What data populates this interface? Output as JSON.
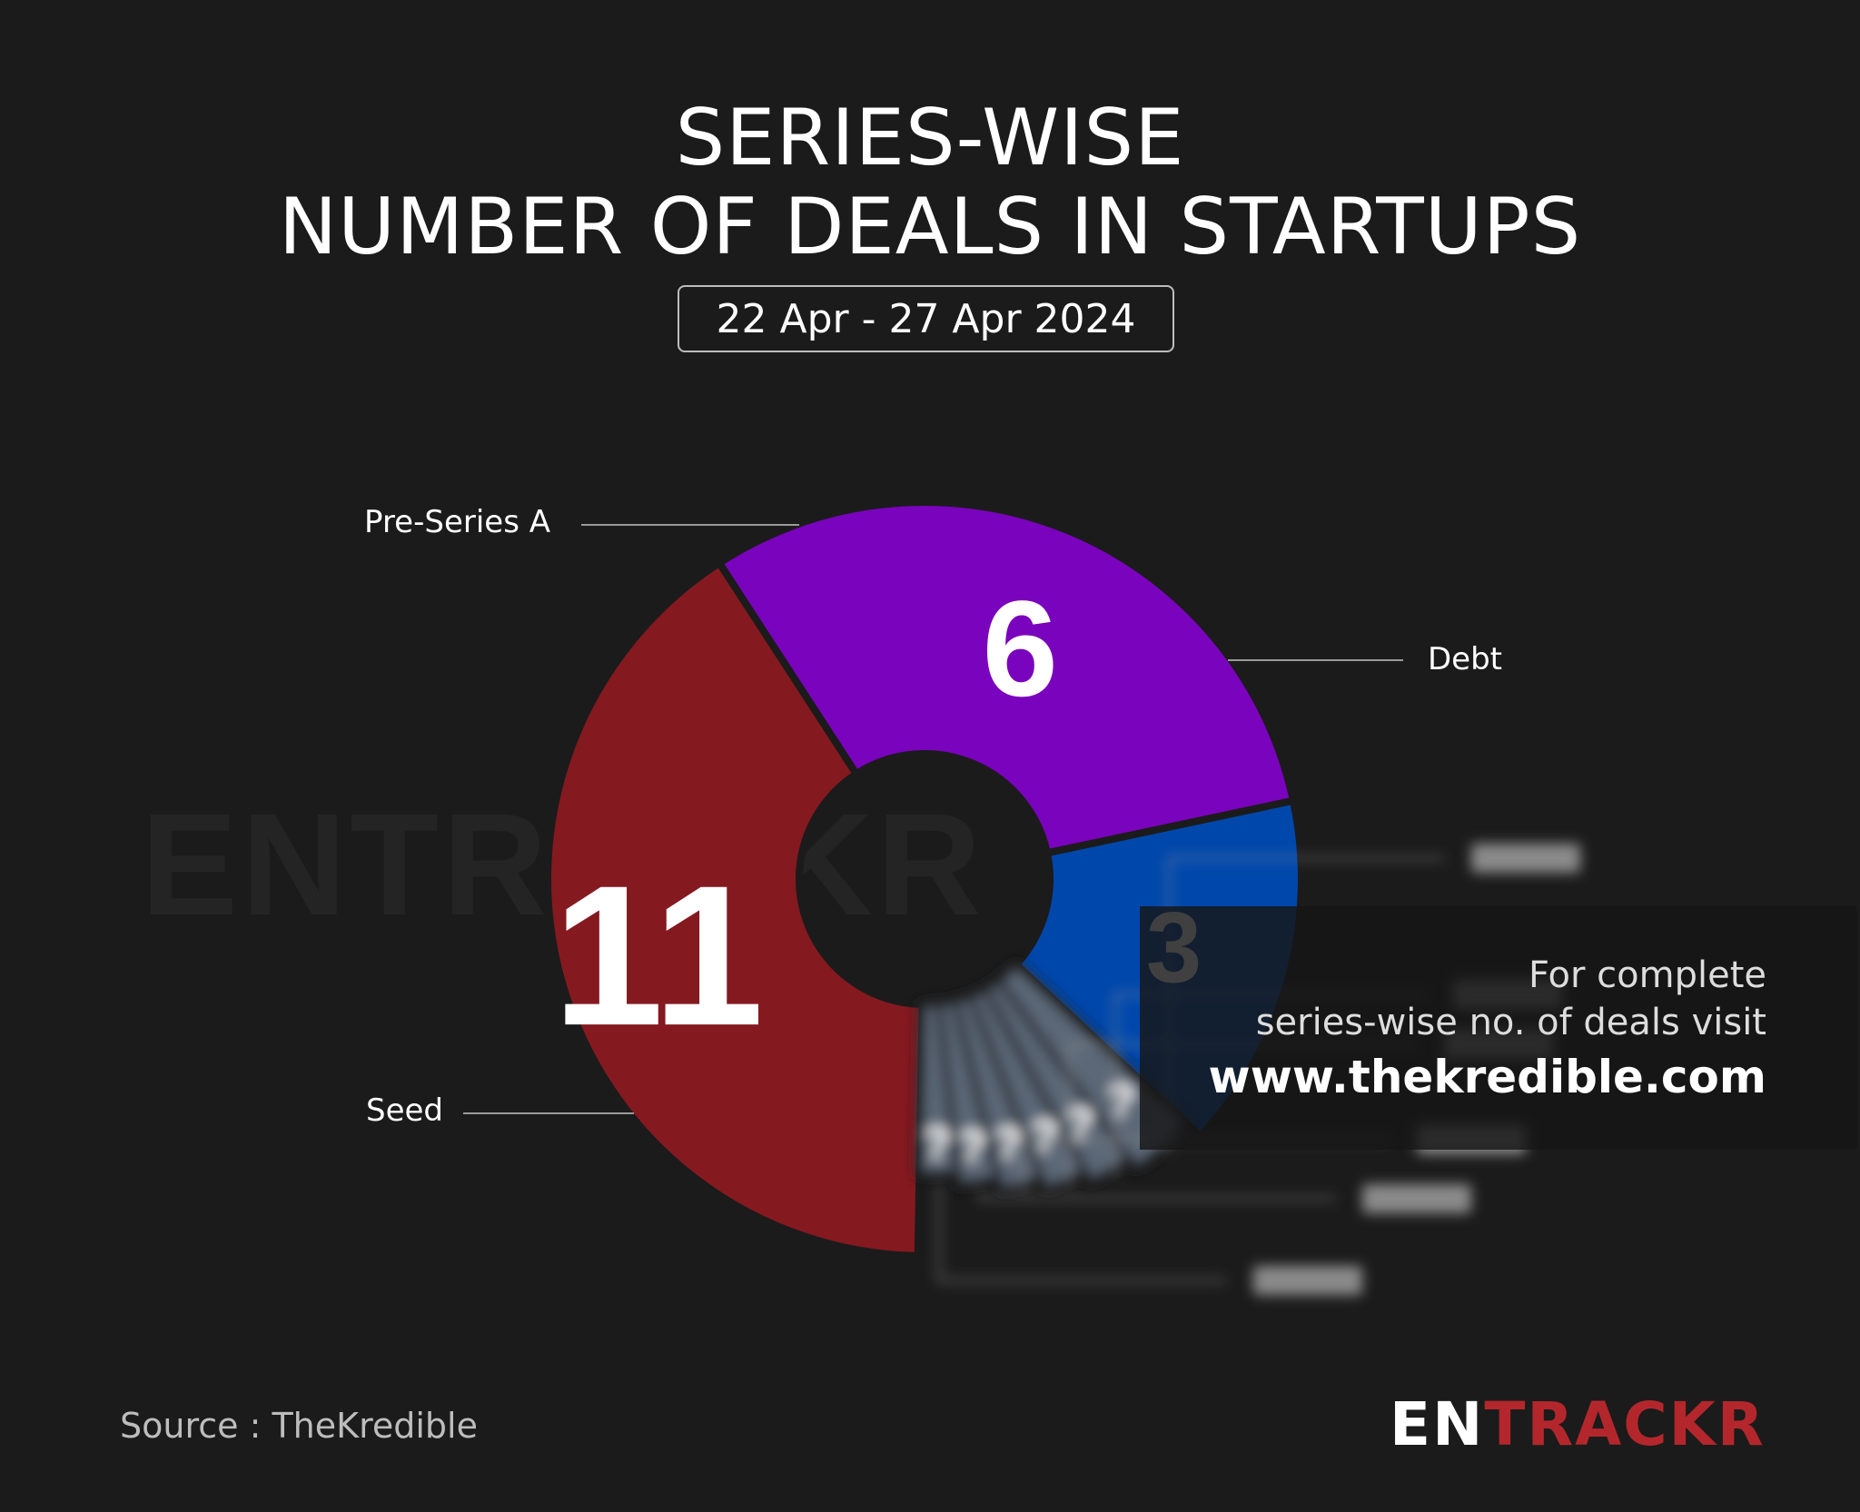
{
  "header": {
    "title_line_1": "SERIES-WISE",
    "title_line_2": "NUMBER OF DEALS IN STARTUPS",
    "date_range": "22 Apr - 27 Apr 2024"
  },
  "chart_data": {
    "type": "pie",
    "title": "SERIES-WISE NUMBER OF DEALS IN STARTUPS",
    "subtitle": "22 Apr - 27 Apr 2024",
    "slices": [
      {
        "label": "Pre-Series A",
        "value": 6,
        "color": "#7a03bd"
      },
      {
        "label": "Debt",
        "value": 3,
        "color": "#0047ab"
      },
      {
        "label": "",
        "value": null,
        "display": "?",
        "color": "#5c6877",
        "hidden": true
      },
      {
        "label": "",
        "value": null,
        "display": "?",
        "color": "#5c6877",
        "hidden": true
      },
      {
        "label": "",
        "value": null,
        "display": "?",
        "color": "#5c6877",
        "hidden": true
      },
      {
        "label": "",
        "value": null,
        "display": "?",
        "color": "#5c6877",
        "hidden": true
      },
      {
        "label": "",
        "value": null,
        "display": "?",
        "color": "#5c6877",
        "hidden": true
      },
      {
        "label": "",
        "value": null,
        "display": "?",
        "color": "#5c6877",
        "hidden": true
      },
      {
        "label": "Seed",
        "value": 11,
        "color": "#851920"
      }
    ],
    "hole": "donut",
    "legend": "callout labels"
  },
  "watermark": {
    "text": "ENTRACKR"
  },
  "promo": {
    "line_1": "For complete",
    "line_2": "series-wise no. of deals visit",
    "url": "www.thekredible.com"
  },
  "footer": {
    "source": "Source : TheKredible",
    "brand_en": "EN",
    "brand_rest": "TRACKR"
  },
  "colors": {
    "background": "#1b1b1b",
    "accent": "#b3272c"
  }
}
